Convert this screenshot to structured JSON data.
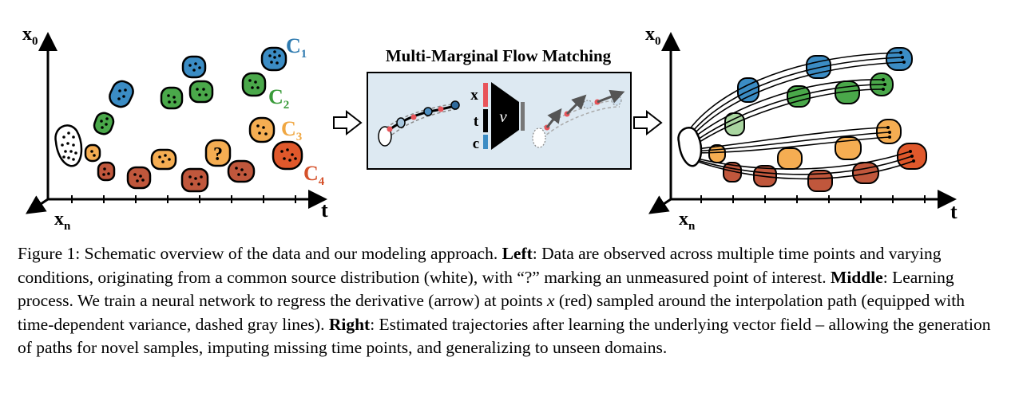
{
  "figure": {
    "left_panel": {
      "y_axis_label": "x",
      "y_axis_sub": "0",
      "x_axis_label": "t",
      "depth_axis_label": "x",
      "depth_axis_sub": "n",
      "condition_labels": [
        {
          "letter": "C",
          "sub": "1",
          "color": "#2f7bb0"
        },
        {
          "letter": "C",
          "sub": "2",
          "color": "#3a9b3a"
        },
        {
          "letter": "C",
          "sub": "3",
          "color": "#f0a742"
        },
        {
          "letter": "C",
          "sub": "4",
          "color": "#d5512a"
        }
      ],
      "unknown_marker": "?"
    },
    "middle_panel": {
      "title": "Multi-Marginal Flow Matching",
      "input_labels": [
        "x",
        "t",
        "c"
      ],
      "network_symbol": "v"
    },
    "right_panel": {
      "y_axis_label": "x",
      "y_axis_sub": "0",
      "x_axis_label": "t",
      "depth_axis_label": "x",
      "depth_axis_sub": "n"
    },
    "colors": {
      "c1": "#3b8cc4",
      "c2": "#4aa84a",
      "c3": "#f5ad52",
      "c4": "#e0582b",
      "brown": "#c0573c",
      "panel_bg": "#dde9f2",
      "red_point": "#e8545a"
    }
  },
  "caption": {
    "prefix": "Figure 1: Schematic overview of the data and our modeling approach. ",
    "left_label": "Left",
    "left_text": ": Data are observed across multiple time points and varying conditions, originating from a common source distribution (white), with “?” marking an unmeasured point of interest. ",
    "middle_label": "Middle",
    "middle_text_1": ": Learning process. We train a neural network to regress the derivative (arrow) at points ",
    "math_x": "x",
    "middle_text_2": " (red) sampled around the interpolation path (equipped with time-dependent variance, dashed gray lines). ",
    "right_label": "Right",
    "right_text": ": Estimated trajectories after learning the underlying vector field – allowing the generation of paths for novel samples, imputing missing time points, and generalizing to unseen domains."
  }
}
